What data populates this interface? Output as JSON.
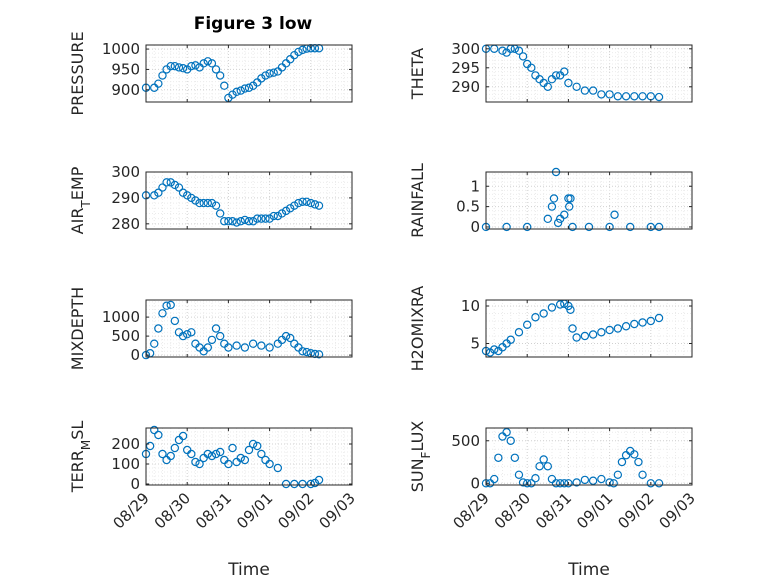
{
  "title": "Figure 3 low",
  "xlabel": "Time",
  "x_ticks": [
    "08/29",
    "08/30",
    "08/31",
    "09/01",
    "09/02",
    "09/03"
  ],
  "marker_color": "#0072BD",
  "chart_data": [
    {
      "type": "scatter",
      "id": "pressure",
      "ylabel": "PRESSURE",
      "ylim": [
        870,
        1010
      ],
      "yticks": [
        "900",
        "950",
        "1000"
      ],
      "ytick_values": [
        900,
        950,
        1000
      ],
      "grid": true,
      "x": [
        0.0,
        0.2,
        0.3,
        0.4,
        0.5,
        0.6,
        0.7,
        0.8,
        0.9,
        1.0,
        1.1,
        1.2,
        1.3,
        1.4,
        1.5,
        1.6,
        1.7,
        1.8,
        1.9,
        2.0,
        2.1,
        2.2,
        2.3,
        2.4,
        2.5,
        2.6,
        2.7,
        2.8,
        2.9,
        3.0,
        3.1,
        3.2,
        3.3,
        3.4,
        3.5,
        3.6,
        3.7,
        3.8,
        3.9,
        4.0,
        4.1,
        4.2
      ],
      "y": [
        905,
        905,
        915,
        935,
        950,
        958,
        958,
        955,
        953,
        950,
        958,
        960,
        955,
        965,
        970,
        965,
        950,
        935,
        910,
        880,
        888,
        895,
        898,
        903,
        905,
        910,
        918,
        928,
        935,
        940,
        942,
        945,
        955,
        965,
        975,
        985,
        993,
        998,
        1001,
        1002,
        1002,
        1002
      ]
    },
    {
      "type": "scatter",
      "id": "theta",
      "ylabel": "THETA",
      "ylim": [
        286,
        301
      ],
      "yticks": [
        "290",
        "295",
        "300"
      ],
      "ytick_values": [
        290,
        295,
        300
      ],
      "grid": true,
      "x": [
        0.0,
        0.2,
        0.4,
        0.5,
        0.6,
        0.7,
        0.8,
        0.9,
        1.0,
        1.1,
        1.2,
        1.3,
        1.4,
        1.5,
        1.6,
        1.7,
        1.8,
        1.9,
        2.0,
        2.2,
        2.4,
        2.6,
        2.8,
        3.0,
        3.2,
        3.4,
        3.6,
        3.8,
        4.0,
        4.2
      ],
      "y": [
        300,
        300,
        299.5,
        299,
        300,
        300,
        299.5,
        298,
        296,
        295,
        293,
        292,
        291,
        290,
        292,
        293,
        293,
        294,
        291,
        290,
        289,
        289,
        288,
        288,
        287.5,
        287.5,
        287.5,
        287.5,
        287.5,
        287.3
      ]
    },
    {
      "type": "scatter",
      "id": "air_temp",
      "ylabel_main": "AIR",
      "ylabel_sub": "T",
      "ylabel_rest": "EMP",
      "ylim": [
        278,
        300
      ],
      "yticks": [
        "280",
        "290",
        "300"
      ],
      "ytick_values": [
        280,
        290,
        300
      ],
      "grid": true,
      "x": [
        0.0,
        0.2,
        0.3,
        0.4,
        0.5,
        0.6,
        0.7,
        0.8,
        0.9,
        1.0,
        1.1,
        1.2,
        1.3,
        1.4,
        1.5,
        1.6,
        1.7,
        1.8,
        1.9,
        2.0,
        2.1,
        2.2,
        2.3,
        2.4,
        2.5,
        2.6,
        2.7,
        2.8,
        2.9,
        3.0,
        3.1,
        3.2,
        3.3,
        3.4,
        3.5,
        3.6,
        3.7,
        3.8,
        3.9,
        4.0,
        4.1,
        4.2
      ],
      "y": [
        291,
        291,
        292,
        294,
        296,
        296,
        295,
        294,
        292,
        291,
        290,
        289,
        288,
        288,
        288,
        288,
        287,
        284,
        281,
        281,
        281,
        280.5,
        281,
        281.5,
        281,
        281,
        282,
        282,
        282,
        282,
        283,
        283,
        284,
        285,
        286,
        287,
        288,
        288.5,
        288.5,
        288,
        287.5,
        287
      ]
    },
    {
      "type": "scatter",
      "id": "rainfall",
      "ylabel": "RAINFALL",
      "ylim": [
        -0.05,
        1.35
      ],
      "yticks": [
        "0",
        "0.5",
        "1"
      ],
      "ytick_values": [
        0,
        0.5,
        1
      ],
      "grid": true,
      "x": [
        0.0,
        0.5,
        1.0,
        1.5,
        1.6,
        1.65,
        1.7,
        1.75,
        1.8,
        1.9,
        2.0,
        2.02,
        2.05,
        2.1,
        2.5,
        3.0,
        3.12,
        3.5,
        4.0,
        4.2
      ],
      "y": [
        0,
        0,
        0,
        0.2,
        0.5,
        0.7,
        1.35,
        0.1,
        0.2,
        0.3,
        0.7,
        0.5,
        0.7,
        0,
        0,
        0,
        0.3,
        0,
        0,
        0
      ]
    },
    {
      "type": "scatter",
      "id": "mixdepth",
      "ylabel": "MIXDEPTH",
      "ylim": [
        -50,
        1450
      ],
      "yticks": [
        "0",
        "500",
        "1000"
      ],
      "ytick_values": [
        0,
        500,
        1000
      ],
      "grid": true,
      "x": [
        0.0,
        0.1,
        0.2,
        0.3,
        0.4,
        0.5,
        0.6,
        0.7,
        0.8,
        0.9,
        1.0,
        1.1,
        1.2,
        1.3,
        1.4,
        1.5,
        1.6,
        1.7,
        1.8,
        1.9,
        2.0,
        2.2,
        2.4,
        2.6,
        2.8,
        3.0,
        3.2,
        3.3,
        3.4,
        3.5,
        3.6,
        3.7,
        3.8,
        3.9,
        4.0,
        4.1,
        4.2
      ],
      "y": [
        0,
        50,
        300,
        700,
        1100,
        1300,
        1320,
        900,
        600,
        500,
        550,
        600,
        300,
        200,
        100,
        200,
        400,
        700,
        500,
        300,
        200,
        250,
        200,
        300,
        250,
        200,
        300,
        400,
        500,
        450,
        300,
        200,
        100,
        80,
        50,
        30,
        20
      ]
    },
    {
      "type": "scatter",
      "id": "h2omixra",
      "ylabel": "H2OMIXRA",
      "ylim": [
        3.2,
        10.8
      ],
      "yticks": [
        "5",
        "10"
      ],
      "ytick_values": [
        5,
        10
      ],
      "grid": true,
      "x": [
        0.0,
        0.1,
        0.2,
        0.3,
        0.4,
        0.5,
        0.6,
        0.8,
        1.0,
        1.2,
        1.4,
        1.6,
        1.8,
        1.9,
        2.0,
        2.05,
        2.1,
        2.2,
        2.4,
        2.6,
        2.8,
        3.0,
        3.2,
        3.4,
        3.6,
        3.8,
        4.0,
        4.2
      ],
      "y": [
        4,
        3.8,
        4.2,
        4.0,
        4.5,
        5.0,
        5.5,
        6.5,
        7.5,
        8.5,
        9.0,
        9.8,
        10.2,
        10.3,
        10.0,
        9.5,
        7.0,
        5.8,
        6.0,
        6.2,
        6.5,
        6.8,
        7.0,
        7.3,
        7.6,
        7.8,
        8.0,
        8.4
      ]
    },
    {
      "type": "scatter",
      "id": "terr_msl",
      "ylabel_main": "TERR",
      "ylabel_sub": "M",
      "ylabel_rest": "SL",
      "ylim": [
        -5,
        280
      ],
      "yticks": [
        "0",
        "100",
        "200"
      ],
      "ytick_values": [
        0,
        100,
        200
      ],
      "grid": true,
      "x": [
        0.0,
        0.1,
        0.2,
        0.3,
        0.4,
        0.5,
        0.6,
        0.7,
        0.8,
        0.9,
        1.0,
        1.1,
        1.2,
        1.3,
        1.4,
        1.5,
        1.6,
        1.7,
        1.8,
        1.9,
        2.0,
        2.1,
        2.2,
        2.3,
        2.4,
        2.5,
        2.6,
        2.7,
        2.8,
        2.9,
        3.0,
        3.2,
        3.4,
        3.6,
        3.8,
        4.0,
        4.1,
        4.2
      ],
      "y": [
        150,
        190,
        270,
        245,
        150,
        120,
        140,
        180,
        220,
        240,
        170,
        150,
        110,
        100,
        130,
        150,
        140,
        150,
        160,
        120,
        100,
        180,
        110,
        130,
        120,
        170,
        200,
        190,
        150,
        120,
        100,
        80,
        0,
        0,
        0,
        0,
        5,
        20
      ]
    },
    {
      "type": "scatter",
      "id": "sun_flux",
      "ylabel_main": "SUN",
      "ylabel_sub": "F",
      "ylabel_rest": "LUX",
      "ylim": [
        -20,
        650
      ],
      "yticks": [
        "0",
        "500"
      ],
      "ytick_values": [
        0,
        500
      ],
      "grid": true,
      "x": [
        0.0,
        0.1,
        0.2,
        0.3,
        0.4,
        0.5,
        0.6,
        0.7,
        0.8,
        0.9,
        1.0,
        1.1,
        1.2,
        1.3,
        1.4,
        1.5,
        1.6,
        1.7,
        1.8,
        1.9,
        2.0,
        2.2,
        2.4,
        2.6,
        2.8,
        3.0,
        3.1,
        3.2,
        3.3,
        3.4,
        3.5,
        3.6,
        3.7,
        3.8,
        4.0,
        4.2
      ],
      "y": [
        0,
        0,
        50,
        300,
        550,
        600,
        500,
        300,
        100,
        10,
        0,
        0,
        60,
        200,
        280,
        200,
        50,
        0,
        0,
        0,
        0,
        10,
        40,
        30,
        50,
        10,
        0,
        100,
        250,
        330,
        380,
        340,
        250,
        100,
        0,
        0
      ]
    }
  ]
}
